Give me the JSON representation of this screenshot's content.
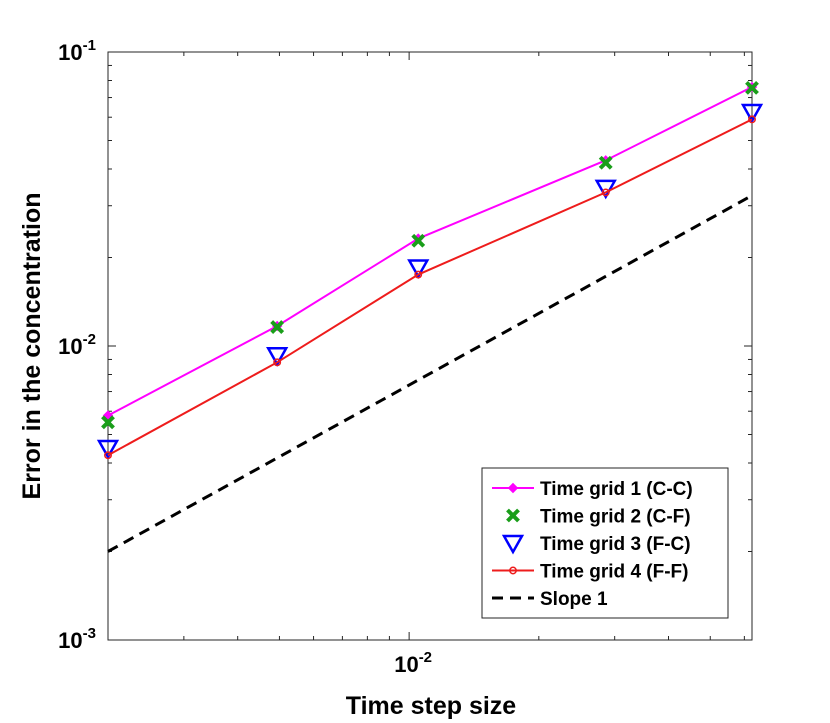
{
  "chart_data": {
    "type": "line",
    "title": "",
    "xlabel": "Time step size",
    "ylabel": "Error in the concentration",
    "xscale": "log",
    "yscale": "log",
    "xlim": [
      0.002,
      0.0625
    ],
    "ylim": [
      0.001,
      0.1
    ],
    "grid": false,
    "legend_position": "bottom-right",
    "x": [
      0.002,
      0.00494,
      0.0105,
      0.0286,
      0.0625
    ],
    "x_ticks": [
      {
        "value": 0.01,
        "base": "10",
        "exp": "-2"
      }
    ],
    "y_ticks": [
      {
        "value": 0.001,
        "base": "10",
        "exp": "-3"
      },
      {
        "value": 0.01,
        "base": "10",
        "exp": "-2"
      },
      {
        "value": 0.1,
        "base": "10",
        "exp": "-1"
      }
    ],
    "series": [
      {
        "name": "Time grid 1 (C-C)",
        "color": "#ff00ff",
        "marker": "diamond",
        "line": "solid",
        "values": [
          0.0058,
          0.0117,
          0.0232,
          0.0428,
          0.076
        ]
      },
      {
        "name": "Time grid 2 (C-F)",
        "color": "#1a9e1a",
        "marker": "x",
        "line": "none",
        "values": [
          0.0055,
          0.0116,
          0.0228,
          0.042,
          0.0755
        ]
      },
      {
        "name": "Time grid 3 (F-C)",
        "color": "#0000ff",
        "marker": "triangle-down",
        "line": "none",
        "values": [
          0.0045,
          0.0093,
          0.0185,
          0.0345,
          0.0625
        ]
      },
      {
        "name": "Time grid 4 (F-F)",
        "color": "#ee1c1c",
        "marker": "circle",
        "line": "solid",
        "values": [
          0.00425,
          0.0088,
          0.0175,
          0.0333,
          0.059
        ]
      },
      {
        "name": "Slope 1",
        "color": "#000000",
        "marker": "none",
        "line": "dashed",
        "x": [
          0.002,
          0.0625
        ],
        "values": [
          0.002,
          0.0325
        ]
      }
    ]
  }
}
